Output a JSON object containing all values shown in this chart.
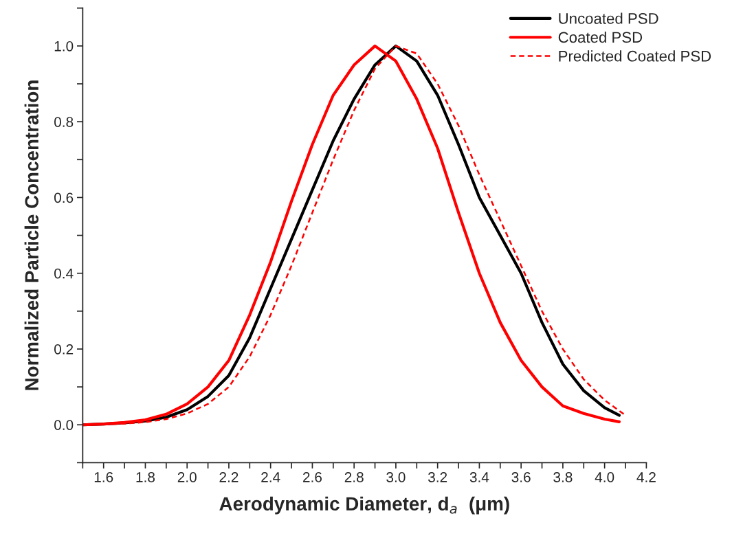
{
  "chart_data": {
    "type": "line",
    "xlabel": "Aerodynamic Diameter, d$_{a}$  (μm)",
    "ylabel": "Normalized Particle Concentration",
    "xlim": [
      1.5,
      4.2
    ],
    "ylim": [
      -0.1,
      1.1
    ],
    "xticks": [
      {
        "value": 1.5,
        "label": null
      },
      {
        "value": 1.6,
        "label": "1.6"
      },
      {
        "value": 1.7,
        "label": null
      },
      {
        "value": 1.8,
        "label": "1.8"
      },
      {
        "value": 1.9,
        "label": null
      },
      {
        "value": 2.0,
        "label": "2.0"
      },
      {
        "value": 2.1,
        "label": null
      },
      {
        "value": 2.2,
        "label": "2.2"
      },
      {
        "value": 2.3,
        "label": null
      },
      {
        "value": 2.4,
        "label": "2.4"
      },
      {
        "value": 2.5,
        "label": null
      },
      {
        "value": 2.6,
        "label": "2.6"
      },
      {
        "value": 2.7,
        "label": null
      },
      {
        "value": 2.8,
        "label": "2.8"
      },
      {
        "value": 2.9,
        "label": null
      },
      {
        "value": 3.0,
        "label": "3.0"
      },
      {
        "value": 3.1,
        "label": null
      },
      {
        "value": 3.2,
        "label": "3.2"
      },
      {
        "value": 3.3,
        "label": null
      },
      {
        "value": 3.4,
        "label": "3.4"
      },
      {
        "value": 3.5,
        "label": null
      },
      {
        "value": 3.6,
        "label": "3.6"
      },
      {
        "value": 3.7,
        "label": null
      },
      {
        "value": 3.8,
        "label": "3.8"
      },
      {
        "value": 3.9,
        "label": null
      },
      {
        "value": 4.0,
        "label": "4.0"
      },
      {
        "value": 4.1,
        "label": null
      },
      {
        "value": 4.2,
        "label": "4.2"
      }
    ],
    "yticks": [
      {
        "value": -0.1,
        "label": null
      },
      {
        "value": 0,
        "label": "0.0"
      },
      {
        "value": 0.1,
        "label": null
      },
      {
        "value": 0.2,
        "label": "0.2"
      },
      {
        "value": 0.3,
        "label": null
      },
      {
        "value": 0.4,
        "label": "0.4"
      },
      {
        "value": 0.5,
        "label": null
      },
      {
        "value": 0.6,
        "label": "0.6"
      },
      {
        "value": 0.7,
        "label": null
      },
      {
        "value": 0.8,
        "label": "0.8"
      },
      {
        "value": 0.9,
        "label": null
      },
      {
        "value": 1.0,
        "label": "1.0"
      },
      {
        "value": 1.1,
        "label": null
      }
    ],
    "grid": false,
    "legend": "top right",
    "marker": "none",
    "series": [
      {
        "name": "Uncoated PSD",
        "color": "#000000",
        "line_style": "solid",
        "x": [
          1.5,
          1.6,
          1.7,
          1.8,
          1.9,
          2.0,
          2.1,
          2.2,
          2.3,
          2.4,
          2.5,
          2.6,
          2.7,
          2.8,
          2.9,
          3.0,
          3.1,
          3.2,
          3.3,
          3.4,
          3.5,
          3.6,
          3.7,
          3.8,
          3.9,
          4.0,
          4.07
        ],
        "values": [
          0,
          0.002,
          0.005,
          0.01,
          0.02,
          0.04,
          0.075,
          0.13,
          0.23,
          0.36,
          0.49,
          0.62,
          0.75,
          0.86,
          0.95,
          1.0,
          0.96,
          0.87,
          0.74,
          0.6,
          0.5,
          0.4,
          0.27,
          0.16,
          0.09,
          0.045,
          0.025
        ]
      },
      {
        "name": "Coated PSD",
        "color": "#ff0000",
        "line_style": "solid",
        "x": [
          1.5,
          1.6,
          1.7,
          1.8,
          1.9,
          2.0,
          2.1,
          2.2,
          2.3,
          2.4,
          2.5,
          2.6,
          2.7,
          2.8,
          2.9,
          3.0,
          3.1,
          3.2,
          3.3,
          3.4,
          3.5,
          3.6,
          3.7,
          3.8,
          3.9,
          4.0,
          4.07
        ],
        "values": [
          0,
          0.002,
          0.006,
          0.013,
          0.028,
          0.055,
          0.1,
          0.17,
          0.29,
          0.43,
          0.59,
          0.74,
          0.87,
          0.95,
          1.0,
          0.96,
          0.86,
          0.73,
          0.56,
          0.4,
          0.27,
          0.17,
          0.1,
          0.05,
          0.03,
          0.015,
          0.008
        ]
      },
      {
        "name": "Predicted Coated PSD",
        "color": "#ff0000",
        "line_style": "dashed",
        "x": [
          1.6,
          1.7,
          1.8,
          1.9,
          2.0,
          2.1,
          2.2,
          2.3,
          2.4,
          2.5,
          2.6,
          2.7,
          2.8,
          2.9,
          3.0,
          3.1,
          3.2,
          3.3,
          3.4,
          3.5,
          3.6,
          3.7,
          3.8,
          3.9,
          4.0,
          4.1
        ],
        "values": [
          0.001,
          0.003,
          0.007,
          0.015,
          0.03,
          0.055,
          0.1,
          0.18,
          0.29,
          0.42,
          0.56,
          0.7,
          0.83,
          0.94,
          1.0,
          0.98,
          0.9,
          0.79,
          0.66,
          0.54,
          0.42,
          0.3,
          0.2,
          0.12,
          0.065,
          0.025
        ]
      }
    ]
  }
}
